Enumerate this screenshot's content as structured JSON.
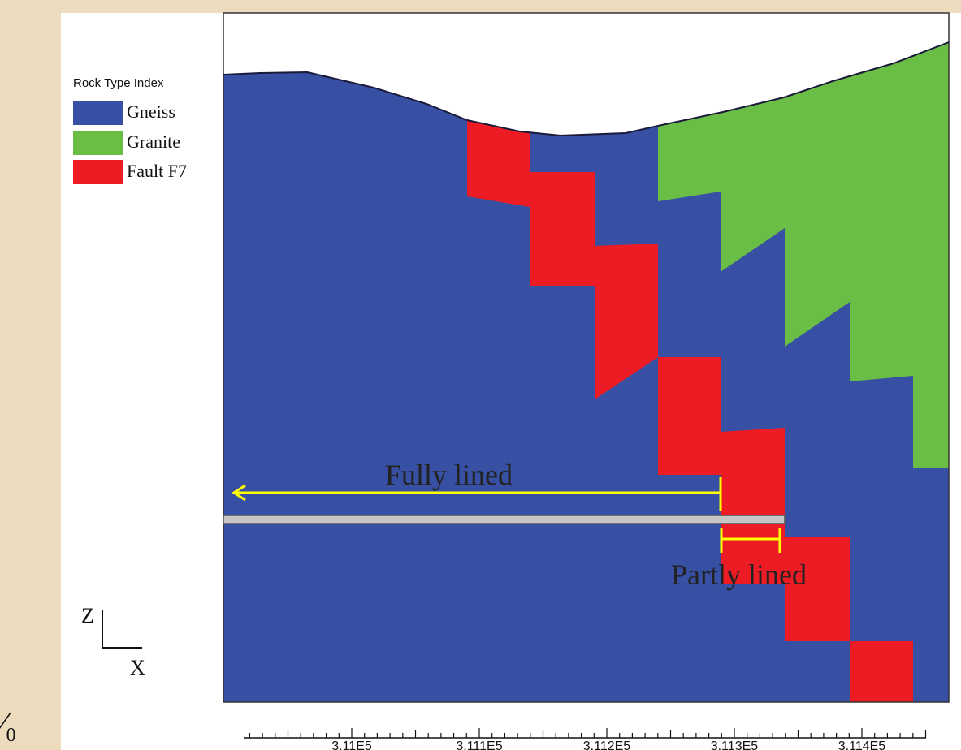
{
  "legend": {
    "title": "Rock Type Index",
    "items": [
      {
        "label": "Gneiss",
        "color": "#3750a3"
      },
      {
        "label": "Granite",
        "color": "#6abd45"
      },
      {
        "label": "Fault F7",
        "color": "#ed1c24"
      }
    ]
  },
  "annotations": {
    "fully_lined": "Fully lined",
    "partly_lined": "Partly lined",
    "marker_color": "#ffff00"
  },
  "tunnel": {
    "color": "#c6c6c6"
  },
  "axis_indicator": {
    "z": "Z",
    "x": "X"
  },
  "x_axis": {
    "tick_labels": [
      "3.11E5",
      "3.111E5",
      "3.112E5",
      "3.113E5",
      "3.114E5"
    ]
  },
  "corner_mark": "⁄₀"
}
